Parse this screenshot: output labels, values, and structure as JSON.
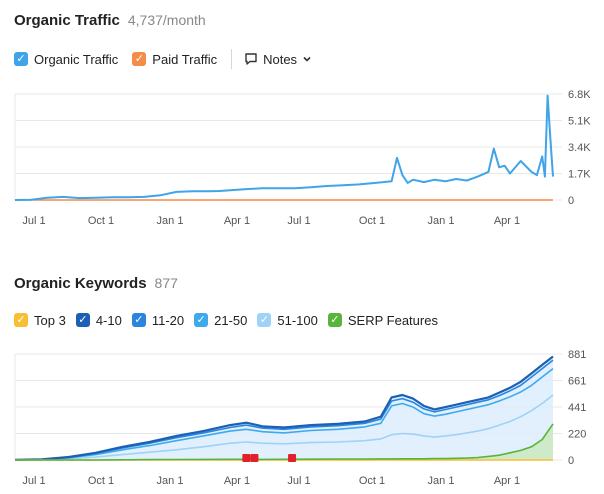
{
  "traffic": {
    "title": "Organic Traffic",
    "subtitle": "4,737/month",
    "legend": [
      {
        "label": "Organic Traffic",
        "color": "#3fa4e8"
      },
      {
        "label": "Paid Traffic",
        "color": "#f58c4a"
      }
    ],
    "notes_label": "Notes",
    "notes_icon": "comment-icon",
    "notes_chevron_icon": "chevron-down-icon"
  },
  "keywords": {
    "title": "Organic Keywords",
    "subtitle": "877",
    "legend": [
      {
        "label": "Top 3",
        "color": "#f7bf34"
      },
      {
        "label": "4-10",
        "color": "#1b60b4"
      },
      {
        "label": "11-20",
        "color": "#2a85de"
      },
      {
        "label": "21-50",
        "color": "#3fa9ee"
      },
      {
        "label": "51-100",
        "color": "#9fd2f7"
      },
      {
        "label": "SERP Features",
        "color": "#59b43a"
      }
    ]
  },
  "chart_data": [
    {
      "type": "line",
      "title": "Organic Traffic",
      "x_ticks": [
        "Jul 1",
        "Oct 1",
        "Jan 1",
        "Apr 1",
        "Jul 1",
        "Oct 1",
        "Jan 1",
        "Apr 1"
      ],
      "y_ticks": [
        "6.8K",
        "5.1K",
        "3.4K",
        "1.7K",
        "0"
      ],
      "ylim": [
        0,
        6800
      ],
      "grid": true,
      "series": [
        {
          "name": "Organic Traffic",
          "color": "#3fa4e8",
          "x": [
            0,
            0.03,
            0.06,
            0.09,
            0.12,
            0.15,
            0.18,
            0.21,
            0.24,
            0.27,
            0.3,
            0.33,
            0.36,
            0.38,
            0.4,
            0.43,
            0.46,
            0.49,
            0.52,
            0.55,
            0.58,
            0.61,
            0.64,
            0.67,
            0.7,
            0.71,
            0.72,
            0.73,
            0.74,
            0.76,
            0.78,
            0.8,
            0.82,
            0.84,
            0.86,
            0.88,
            0.89,
            0.9,
            0.91,
            0.92,
            0.94,
            0.96,
            0.97,
            0.98,
            0.985,
            0.99,
            0.995,
            1.0
          ],
          "values": [
            0,
            20,
            150,
            200,
            120,
            150,
            170,
            180,
            200,
            300,
            520,
            560,
            560,
            580,
            620,
            700,
            750,
            760,
            750,
            820,
            900,
            950,
            1000,
            1100,
            1200,
            2700,
            1600,
            1100,
            1300,
            1150,
            1300,
            1200,
            1350,
            1250,
            1500,
            1800,
            3300,
            2100,
            2200,
            1700,
            2500,
            1800,
            1600,
            2800,
            1500,
            6700,
            4000,
            1500
          ]
        },
        {
          "name": "Paid Traffic",
          "color": "#f58c4a",
          "x": [
            0,
            1.0
          ],
          "values": [
            0,
            0
          ]
        }
      ]
    },
    {
      "type": "area",
      "title": "Organic Keywords",
      "x_ticks": [
        "Jul 1",
        "Oct 1",
        "Jan 1",
        "Apr 1",
        "Jul 1",
        "Oct 1",
        "Jan 1",
        "Apr 1"
      ],
      "y_ticks": [
        "881",
        "661",
        "441",
        "220",
        "0"
      ],
      "ylim": [
        0,
        881
      ],
      "grid": true,
      "x": [
        0,
        0.05,
        0.1,
        0.15,
        0.2,
        0.25,
        0.3,
        0.35,
        0.4,
        0.43,
        0.46,
        0.5,
        0.55,
        0.6,
        0.65,
        0.68,
        0.7,
        0.72,
        0.74,
        0.76,
        0.78,
        0.8,
        0.82,
        0.84,
        0.86,
        0.88,
        0.9,
        0.92,
        0.94,
        0.96,
        0.98,
        1.0
      ],
      "series": [
        {
          "name": "Top 3",
          "color": "#f7bf34",
          "values": [
            0,
            0,
            0,
            0,
            0,
            0,
            0,
            0,
            0,
            0,
            0,
            0,
            0,
            0,
            0,
            0,
            0,
            0,
            0,
            0,
            0,
            0,
            0,
            0,
            0,
            0,
            0,
            0,
            0,
            0,
            0,
            0
          ]
        },
        {
          "name": "4-10",
          "color": "#1b60b4",
          "values": [
            2,
            5,
            25,
            60,
            110,
            150,
            200,
            240,
            290,
            310,
            280,
            270,
            290,
            300,
            320,
            360,
            520,
            540,
            510,
            450,
            420,
            440,
            460,
            480,
            500,
            520,
            560,
            600,
            650,
            720,
            790,
            860
          ]
        },
        {
          "name": "11-20",
          "color": "#2a85de",
          "values": [
            2,
            5,
            22,
            55,
            100,
            140,
            185,
            225,
            270,
            290,
            265,
            255,
            275,
            285,
            305,
            340,
            490,
            510,
            480,
            425,
            400,
            420,
            440,
            460,
            480,
            500,
            535,
            575,
            620,
            690,
            760,
            830
          ]
        },
        {
          "name": "21-50",
          "color": "#3fa9ee",
          "values": [
            1,
            3,
            18,
            45,
            85,
            120,
            160,
            200,
            240,
            255,
            235,
            225,
            245,
            255,
            275,
            305,
            450,
            470,
            440,
            385,
            365,
            380,
            400,
            420,
            440,
            460,
            490,
            525,
            565,
            620,
            690,
            760
          ]
        },
        {
          "name": "51-100",
          "color": "#9fd2f7",
          "values": [
            0,
            2,
            10,
            25,
            45,
            65,
            85,
            110,
            140,
            150,
            140,
            135,
            145,
            150,
            160,
            175,
            210,
            220,
            215,
            200,
            190,
            200,
            210,
            225,
            240,
            260,
            290,
            320,
            360,
            410,
            470,
            540
          ]
        },
        {
          "name": "SERP Features",
          "color": "#59b43a",
          "values": [
            0,
            0,
            0,
            0,
            2,
            3,
            4,
            5,
            6,
            6,
            5,
            6,
            7,
            8,
            8,
            9,
            9,
            10,
            10,
            10,
            12,
            12,
            14,
            16,
            20,
            30,
            40,
            60,
            80,
            110,
            170,
            300
          ]
        }
      ],
      "markers": {
        "color": "#e0202a",
        "x": [
          0.43,
          0.445,
          0.515
        ]
      }
    }
  ]
}
